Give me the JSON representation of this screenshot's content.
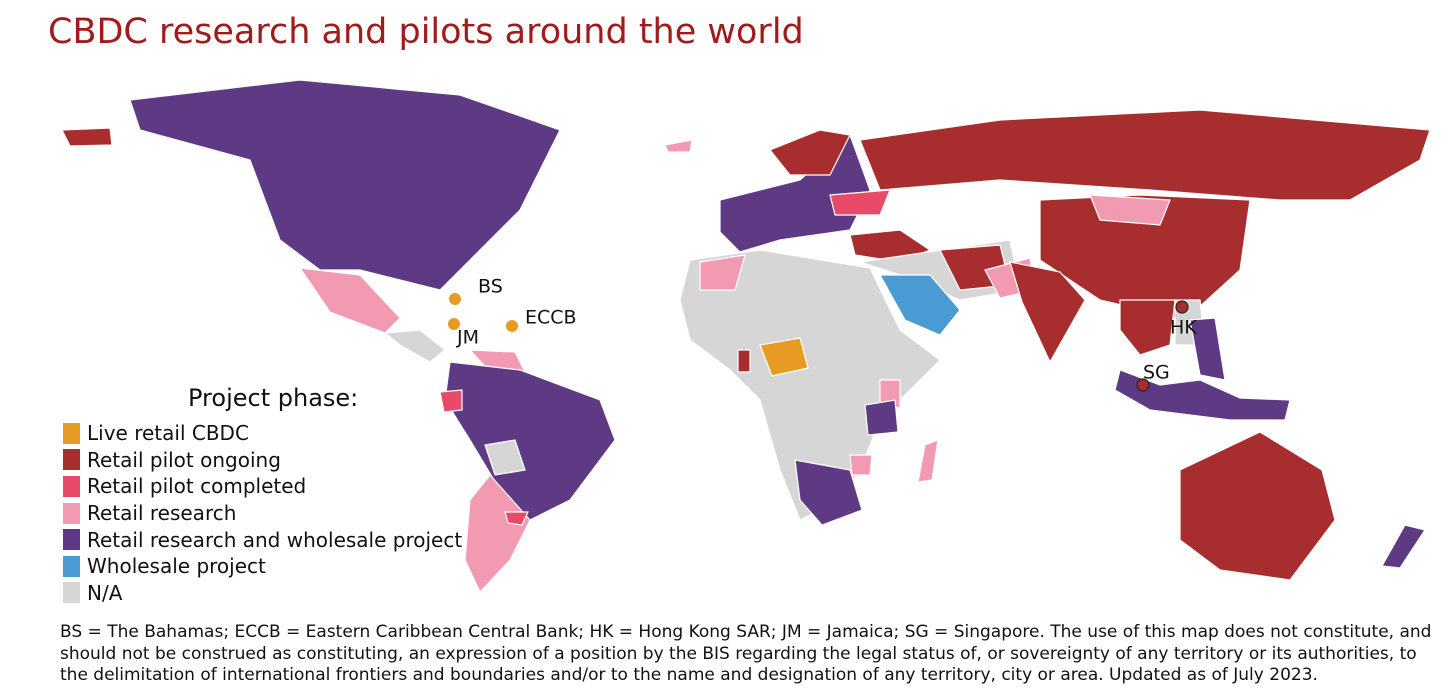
{
  "title": "CBDC research and pilots around the world",
  "markers": [
    {
      "label": "BS",
      "category": 0
    },
    {
      "label": "JM",
      "category": 0
    },
    {
      "label": "ECCB",
      "category": 0
    },
    {
      "label": "HK",
      "category": 1
    },
    {
      "label": "SG",
      "category": 1
    }
  ],
  "legend": {
    "title": "Project phase:",
    "items": [
      {
        "label": "Live retail CBDC",
        "color": "#e89b22"
      },
      {
        "label": "Retail pilot ongoing",
        "color": "#a72d2e"
      },
      {
        "label": "Retail pilot completed",
        "color": "#e84a6a"
      },
      {
        "label": "Retail research",
        "color": "#f29ab2"
      },
      {
        "label": "Retail research and wholesale project",
        "color": "#5e3a84"
      },
      {
        "label": "Wholesale project",
        "color": "#4a9ad4"
      },
      {
        "label": "N/A",
        "color": "#d6d6d6"
      }
    ]
  },
  "footnote": "BS = The Bahamas; ECCB = Eastern Caribbean Central Bank; HK = Hong Kong SAR; JM = Jamaica; SG = Singapore. The use of this map does not constitute, and should not be construed as constituting, an expression of a position by the BIS regarding the legal status of, or sovereignty of any territory or its authorities, to the delimitation of international frontiers and boundaries and/or to the name and designation of any territory, city or area. Updated as of July 2023."
}
